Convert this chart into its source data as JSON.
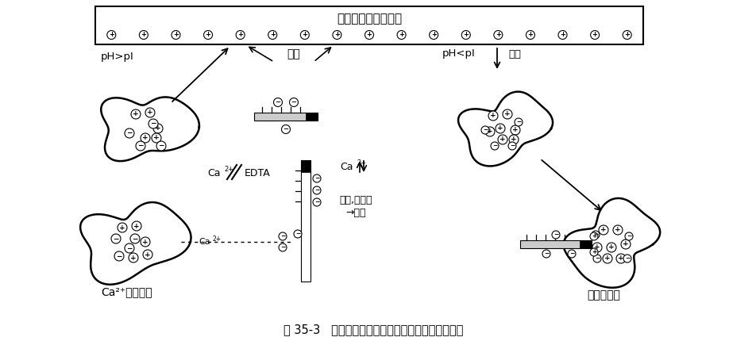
{
  "title": "图 35-3   内毒素和蛋白质在吸附剂和溶液中相互作用",
  "adsorbent_label": "正电荷内毒素吸附剂",
  "ph_gt_pi": "pH>pI",
  "competition": "竞争",
  "ph_lt_pi": "pH<pI",
  "rejection": "排斥",
  "ca_edta_pre": "Ca",
  "edta": "EDTA",
  "ca2_mid": "Ca",
  "particles_line1": "微粒,小囊泡",
  "particles_line2": "→超滤",
  "ca_transport": "Ca²⁺介导转运",
  "endotoxin_cover": "内毒素遮盖",
  "bg_color": "#ffffff",
  "line_color": "#000000"
}
